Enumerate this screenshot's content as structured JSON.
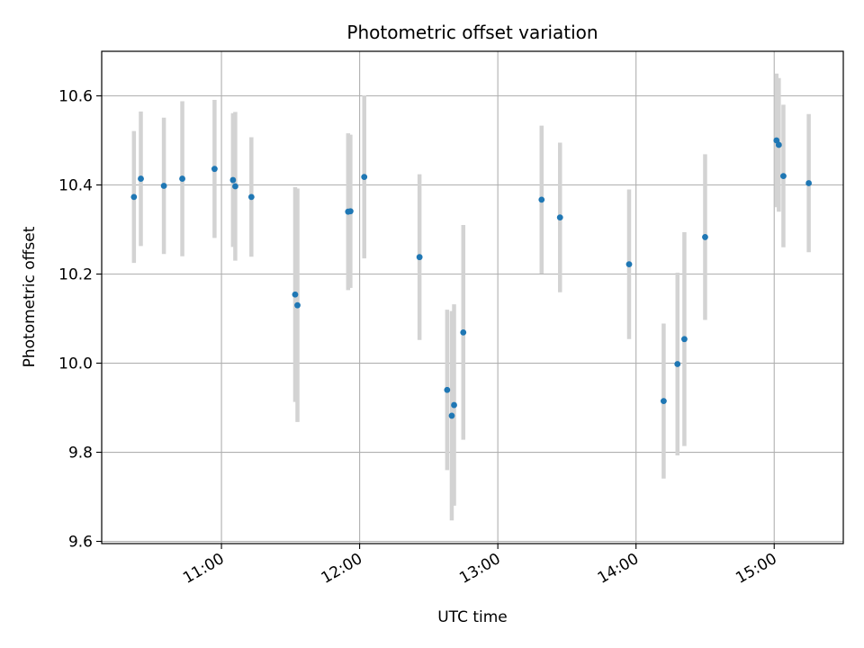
{
  "chart_data": {
    "type": "scatter",
    "title": "Photometric offset variation",
    "xlabel": "UTC time",
    "ylabel": "Photometric offset",
    "x_ticks": [
      "11:00",
      "12:00",
      "13:00",
      "14:00",
      "15:00"
    ],
    "y_ticks": [
      "9.6",
      "9.8",
      "10.0",
      "10.2",
      "10.4",
      "10.6"
    ],
    "xlim": [
      "10:08",
      "15:30"
    ],
    "ylim": [
      9.595,
      10.7
    ],
    "grid": true,
    "marker_color": "#1f77b4",
    "errorbar_color": "#d3d3d3",
    "points": [
      {
        "t": "10:22",
        "y": 10.373,
        "err": 0.148
      },
      {
        "t": "10:25",
        "y": 10.414,
        "err": 0.151
      },
      {
        "t": "10:35",
        "y": 10.398,
        "err": 0.153
      },
      {
        "t": "10:43",
        "y": 10.414,
        "err": 0.174
      },
      {
        "t": "10:57",
        "y": 10.436,
        "err": 0.155
      },
      {
        "t": "11:05",
        "y": 10.411,
        "err": 0.15
      },
      {
        "t": "11:06",
        "y": 10.397,
        "err": 0.167
      },
      {
        "t": "11:13",
        "y": 10.373,
        "err": 0.134
      },
      {
        "t": "11:32",
        "y": 10.154,
        "err": 0.241
      },
      {
        "t": "11:33",
        "y": 10.13,
        "err": 0.262
      },
      {
        "t": "11:55",
        "y": 10.34,
        "err": 0.176
      },
      {
        "t": "11:56",
        "y": 10.341,
        "err": 0.172
      },
      {
        "t": "12:02",
        "y": 10.418,
        "err": 0.183
      },
      {
        "t": "12:26",
        "y": 10.238,
        "err": 0.186
      },
      {
        "t": "12:38",
        "y": 9.94,
        "err": 0.18
      },
      {
        "t": "12:40",
        "y": 9.882,
        "err": 0.235
      },
      {
        "t": "12:41",
        "y": 9.906,
        "err": 0.226
      },
      {
        "t": "12:45",
        "y": 10.069,
        "err": 0.241
      },
      {
        "t": "13:19",
        "y": 10.367,
        "err": 0.166
      },
      {
        "t": "13:27",
        "y": 10.327,
        "err": 0.168
      },
      {
        "t": "13:57",
        "y": 10.222,
        "err": 0.168
      },
      {
        "t": "14:12",
        "y": 9.915,
        "err": 0.174
      },
      {
        "t": "14:18",
        "y": 9.998,
        "err": 0.205
      },
      {
        "t": "14:21",
        "y": 10.054,
        "err": 0.24
      },
      {
        "t": "14:30",
        "y": 10.283,
        "err": 0.186
      },
      {
        "t": "15:01",
        "y": 10.5,
        "err": 0.15
      },
      {
        "t": "15:02",
        "y": 10.49,
        "err": 0.15
      },
      {
        "t": "15:04",
        "y": 10.42,
        "err": 0.16
      },
      {
        "t": "15:15",
        "y": 10.404,
        "err": 0.155
      }
    ]
  }
}
